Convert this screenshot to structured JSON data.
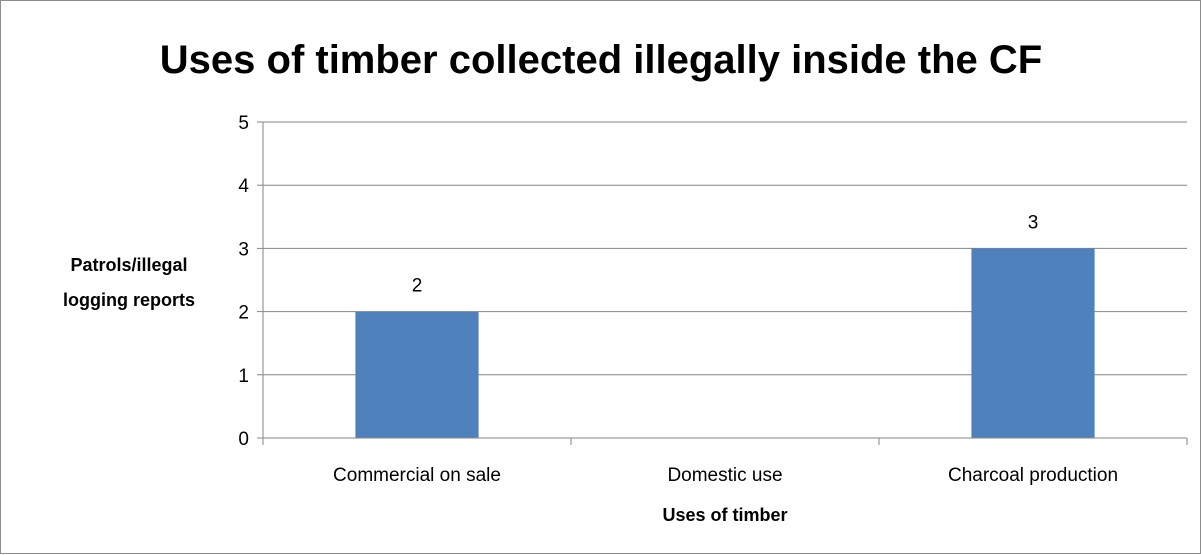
{
  "chart_data": {
    "type": "bar",
    "title": "Uses of timber collected illegally inside the CF",
    "xlabel": "Uses of timber",
    "ylabel_lines": [
      "Patrols/illegal",
      "logging reports"
    ],
    "categories": [
      "Commercial on sale",
      "Domestic use",
      "Charcoal production"
    ],
    "values": [
      2,
      0,
      3
    ],
    "data_labels": [
      "2",
      "",
      "3"
    ],
    "ylim": [
      0,
      5
    ],
    "yticks": [
      0,
      1,
      2,
      3,
      4,
      5
    ],
    "grid": true,
    "legend": "none",
    "colors": {
      "bar": "#4f81bd",
      "grid": "#868686",
      "axis": "#868686"
    }
  }
}
